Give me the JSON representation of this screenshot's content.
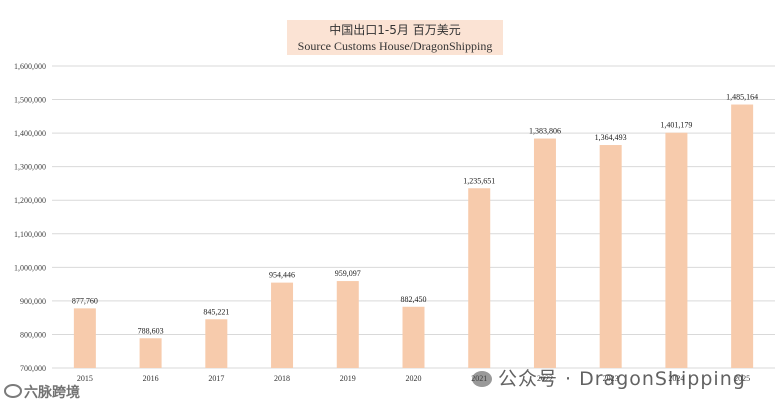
{
  "chart_data": {
    "type": "bar",
    "title": "中国出口1-5月 百万美元",
    "subtitle": "Source Customs House/DragonShipping",
    "categories": [
      "2015",
      "2016",
      "2017",
      "2018",
      "2019",
      "2020",
      "2021",
      "2022",
      "2023",
      "2024",
      "2025"
    ],
    "values": [
      877760,
      788603,
      845221,
      954446,
      959097,
      882450,
      1235651,
      1383806,
      1364493,
      1401179,
      1485164
    ],
    "value_labels": [
      "877,760",
      "788,603",
      "845,221",
      "954,446",
      "959,097",
      "882,450",
      "1,235,651",
      "1,383,806",
      "1,364,493",
      "1,401,179",
      "1,485,164"
    ],
    "ylim": [
      700000,
      1600000
    ],
    "yticks": [
      700000,
      800000,
      900000,
      1000000,
      1100000,
      1200000,
      1300000,
      1400000,
      1500000,
      1600000
    ],
    "ytick_labels": [
      "700,000",
      "800,000",
      "900,000",
      "1,000,000",
      "1,100,000",
      "1,200,000",
      "1,300,000",
      "1,400,000",
      "1,500,000",
      "1,600,000"
    ],
    "bar_color": "#f7cbac",
    "grid": true
  },
  "watermark": {
    "text": "公众号 · DragonShipping",
    "icon": "wechat-icon"
  },
  "brand": {
    "text": "六脉跨境",
    "icon": "logo-icon"
  }
}
